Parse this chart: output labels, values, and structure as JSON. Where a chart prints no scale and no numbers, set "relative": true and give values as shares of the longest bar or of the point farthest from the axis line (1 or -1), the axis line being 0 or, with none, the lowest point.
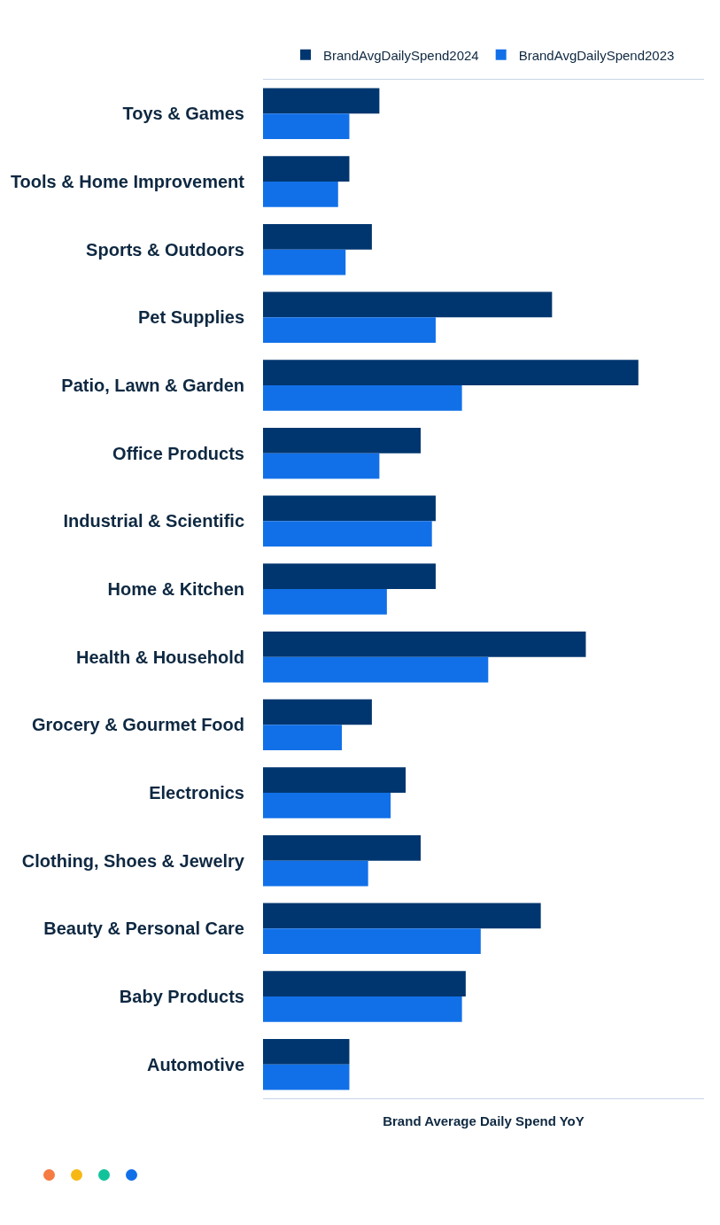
{
  "chart_data": {
    "type": "bar",
    "orientation": "horizontal",
    "relative": true,
    "xlabel": "Brand Average Daily Spend YoY",
    "legend": "top",
    "categories": [
      "Toys & Games",
      "Tools & Home Improvement",
      "Sports & Outdoors",
      "Pet Supplies",
      "Patio, Lawn & Garden",
      "Office Products",
      "Industrial & Scientific",
      "Home & Kitchen",
      "Health & Household",
      "Grocery & Gourmet Food",
      "Electronics",
      "Clothing, Shoes & Jewelry",
      "Beauty & Personal Care",
      "Baby Products",
      "Automotive"
    ],
    "series": [
      {
        "name": "BrandAvgDailySpend2024",
        "color": "#00366f",
        "values": [
          0.31,
          0.23,
          0.29,
          0.77,
          1,
          0.42,
          0.46,
          0.46,
          0.86,
          0.29,
          0.38,
          0.42,
          0.74,
          0.54,
          0.23
        ]
      },
      {
        "name": "BrandAvgDailySpend2023",
        "color": "#1170e8",
        "values": [
          0.23,
          0.2,
          0.22,
          0.46,
          0.53,
          0.31,
          0.45,
          0.33,
          0.6,
          0.21,
          0.34,
          0.28,
          0.58,
          0.53,
          0.23
        ]
      }
    ]
  }
}
